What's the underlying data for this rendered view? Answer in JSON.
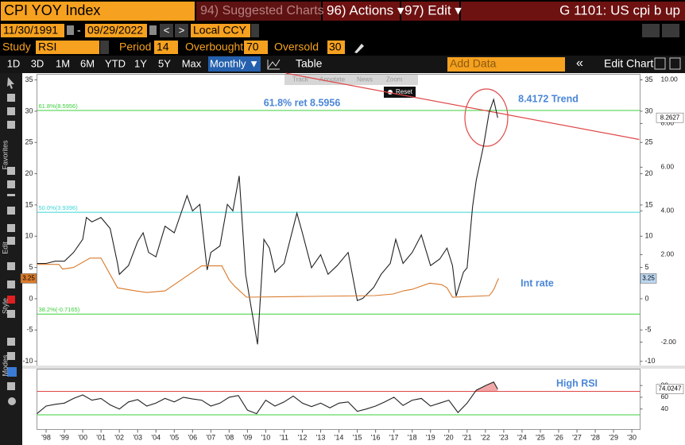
{
  "ui": {
    "ticker": "CPI YOY Index",
    "suggested": "94) Suggested Charts",
    "actions": "96) Actions ▾",
    "edit": "97) Edit ▾",
    "function": "G 1101: US cpi b up",
    "start_date": "11/30/1991",
    "date_sep": "-",
    "end_date": "09/29/2022",
    "nav_prev": "<",
    "nav_next": ">",
    "currency": "Local CCY",
    "study_label": "Study",
    "study": "RSI",
    "period_label": "Period",
    "period": 14,
    "overbought_label": "Overbought",
    "oversold_label": "Oversold",
    "ranges": [
      "1D",
      "3D",
      "1M",
      "6M",
      "YTD",
      "1Y",
      "5Y",
      "Max"
    ],
    "frequency": "Monthly ▼",
    "table": "Table",
    "add_data": "Add Data",
    "collapse": "«",
    "edit_chart": "Edit Chart",
    "tools": [
      "Track",
      "Annotate",
      "News",
      "Zoom"
    ],
    "reset": "Reset",
    "sidebar": [
      "Favorites",
      "Edit",
      "Style",
      "Modes"
    ]
  },
  "chart_data": [
    {
      "type": "line",
      "xlim": [
        1997.5,
        2030.45
      ],
      "xticks": [
        {
          "value": 1998,
          "label": "'98"
        },
        {
          "value": 1999,
          "label": "'99"
        },
        {
          "value": 2000,
          "label": "'00"
        },
        {
          "value": 2001,
          "label": "'01"
        },
        {
          "value": 2002,
          "label": "'02"
        },
        {
          "value": 2003,
          "label": "'03"
        },
        {
          "value": 2004,
          "label": "'04"
        },
        {
          "value": 2005,
          "label": "'05"
        },
        {
          "value": 2006,
          "label": "'06"
        },
        {
          "value": 2007,
          "label": "'07"
        },
        {
          "value": 2008,
          "label": "'08"
        },
        {
          "value": 2009,
          "label": "'09"
        },
        {
          "value": 2010,
          "label": "'10"
        },
        {
          "value": 2011,
          "label": "'11"
        },
        {
          "value": 2012,
          "label": "'12"
        },
        {
          "value": 2013,
          "label": "'13"
        },
        {
          "value": 2014,
          "label": "'14"
        },
        {
          "value": 2015,
          "label": "'15"
        },
        {
          "value": 2016,
          "label": "'16"
        },
        {
          "value": 2017,
          "label": "'17"
        },
        {
          "value": 2018,
          "label": "'18"
        },
        {
          "value": 2019,
          "label": "'19"
        },
        {
          "value": 2020,
          "label": "'20"
        },
        {
          "value": 2021,
          "label": "'21"
        },
        {
          "value": 2022,
          "label": "'22"
        },
        {
          "value": 2023,
          "label": "'23"
        },
        {
          "value": 2024,
          "label": "'24"
        },
        {
          "value": 2025,
          "label": "'25"
        },
        {
          "value": 2026,
          "label": "'26"
        },
        {
          "value": 2027,
          "label": "'27"
        },
        {
          "value": 2028,
          "label": "'28"
        },
        {
          "value": 2029,
          "label": "'29"
        },
        {
          "value": 2030,
          "label": "'30"
        }
      ],
      "ylim": [
        -10.75,
        35.9
      ],
      "yticks": [
        35,
        30,
        25,
        20,
        15,
        10,
        5,
        0,
        -5,
        -10
      ],
      "y2lim": [
        -3.09,
        10.25
      ],
      "y2ticks": [
        {
          "value": 10,
          "label": "10.00"
        },
        {
          "value": 8,
          "label": "8.00"
        },
        {
          "value": 6,
          "label": "6.00"
        },
        {
          "value": 4,
          "label": "4.00"
        },
        {
          "value": 2,
          "label": "2.00"
        },
        {
          "value": -2,
          "label": "-2.00"
        }
      ],
      "series": [
        {
          "color": "#222222",
          "axis": "y2",
          "x": [
            1997.5,
            1998.0,
            1998.5,
            1999.0,
            1999.5,
            2000.0,
            2000.2,
            2000.5,
            2001.0,
            2001.5,
            2001.9,
            2002.0,
            2002.5,
            2003.0,
            2003.3,
            2003.6,
            2004.0,
            2004.5,
            2005.0,
            2005.7,
            2006.0,
            2006.4,
            2006.8,
            2007.0,
            2007.5,
            2007.9,
            2008.2,
            2008.55,
            2008.9,
            2009.2,
            2009.55,
            2009.9,
            2010.2,
            2010.5,
            2011.0,
            2011.7,
            2012.0,
            2012.5,
            2013.0,
            2013.4,
            2013.9,
            2014.5,
            2015.0,
            2015.3,
            2015.9,
            2016.3,
            2016.8,
            2017.1,
            2017.5,
            2018.0,
            2018.5,
            2019.0,
            2019.5,
            2019.9,
            2020.2,
            2020.4,
            2020.8,
            2021.0,
            2021.3,
            2021.5,
            2021.9,
            2022.2,
            2022.45,
            2022.67
          ],
          "values": [
            1.6,
            1.6,
            1.7,
            1.7,
            2.1,
            2.7,
            3.7,
            3.5,
            3.7,
            3.2,
            1.6,
            1.1,
            1.5,
            2.6,
            3.0,
            2.1,
            1.9,
            3.3,
            3.0,
            4.7,
            4.0,
            4.3,
            1.3,
            2.1,
            2.4,
            4.3,
            4.0,
            5.6,
            1.1,
            -0.4,
            -2.1,
            2.7,
            2.3,
            1.2,
            1.6,
            3.9,
            3.0,
            1.4,
            2.0,
            1.1,
            1.5,
            2.1,
            -0.1,
            0.0,
            0.5,
            1.1,
            1.6,
            2.7,
            1.6,
            2.1,
            2.9,
            1.5,
            1.8,
            2.3,
            1.5,
            0.1,
            1.2,
            1.4,
            4.2,
            5.4,
            7.0,
            8.5,
            9.1,
            8.2627
          ]
        },
        {
          "color": "#d97a2b",
          "axis": "y",
          "x": [
            1997.5,
            1998.7,
            1998.9,
            1999.5,
            2000.4,
            2001.0,
            2001.9,
            2002.9,
            2003.5,
            2004.5,
            2005.0,
            2006.5,
            2007.6,
            2008.0,
            2008.3,
            2008.95,
            2015.95,
            2016.95,
            2017.5,
            2018.0,
            2018.95,
            2019.6,
            2019.9,
            2020.2,
            2022.2,
            2022.35,
            2022.5,
            2022.6,
            2022.72
          ],
          "values": [
            5.5,
            5.5,
            4.75,
            5.0,
            6.5,
            6.5,
            1.75,
            1.25,
            1.0,
            1.25,
            2.25,
            5.25,
            5.25,
            3.0,
            2.0,
            0.25,
            0.5,
            0.75,
            1.25,
            1.5,
            2.5,
            2.25,
            1.75,
            0.25,
            0.5,
            1.0,
            1.75,
            2.5,
            3.25
          ]
        }
      ],
      "fib_levels": [
        {
          "label": "61.8%(8.5956)",
          "value": 8.5956,
          "color": "#3ccf3c"
        },
        {
          "label": "50.0%(3.9396)",
          "value": 3.9396,
          "color": "#3cd6d6"
        },
        {
          "label": "38.2%(-0.7165)",
          "value": -0.7165,
          "color": "#3ccf3c"
        }
      ],
      "trend": {
        "x": [
          2011.1,
          2030.4
        ],
        "values": [
          10.3,
          7.27
        ],
        "color": "#e04848"
      },
      "annotations": [
        "61.8% ret 8.5956",
        "8.4172 Trend",
        "Int rate"
      ]
    },
    {
      "type": "line",
      "ylim": [
        5,
        108
      ],
      "yticks": [
        80,
        60,
        40
      ],
      "overbought": 70,
      "oversold": 30,
      "series": [
        {
          "color": "#222222",
          "x": [
            1997.5,
            1998.0,
            1998.5,
            1999.0,
            1999.5,
            2000.0,
            2000.5,
            2001.0,
            2001.5,
            2002.0,
            2002.5,
            2003.0,
            2003.5,
            2004.0,
            2004.5,
            2005.0,
            2005.5,
            2006.0,
            2006.5,
            2007.0,
            2007.5,
            2008.0,
            2008.5,
            2009.0,
            2009.5,
            2010.0,
            2010.5,
            2011.0,
            2011.5,
            2012.0,
            2012.5,
            2013.0,
            2013.5,
            2014.0,
            2014.5,
            2015.0,
            2015.5,
            2016.0,
            2016.5,
            2017.0,
            2017.5,
            2018.0,
            2018.5,
            2019.0,
            2019.5,
            2020.0,
            2020.5,
            2021.0,
            2021.5,
            2022.0,
            2022.45,
            2022.67
          ],
          "values": [
            32,
            45,
            48,
            50,
            58,
            64,
            55,
            58,
            47,
            40,
            52,
            56,
            45,
            50,
            58,
            52,
            60,
            57,
            55,
            45,
            50,
            60,
            63,
            38,
            32,
            55,
            45,
            52,
            62,
            50,
            44,
            50,
            42,
            50,
            52,
            36,
            40,
            45,
            52,
            60,
            46,
            55,
            58,
            45,
            50,
            55,
            34,
            50,
            72,
            80,
            86,
            74.0247
          ]
        }
      ],
      "overbought_fill": "#f2a7a7",
      "annotations": [
        "High RSI"
      ]
    }
  ]
}
